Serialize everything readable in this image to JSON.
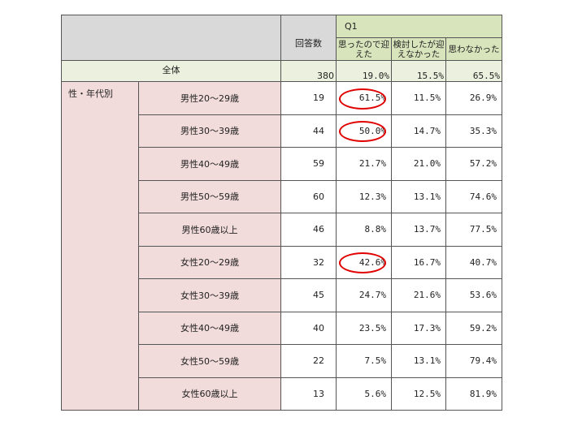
{
  "header": {
    "question": "Q1",
    "count_label": "回答数",
    "answers": [
      "思ったので迎えた",
      "検討したが迎えなかった",
      "思わなかった"
    ]
  },
  "total": {
    "label": "全体",
    "count": "380",
    "values": [
      "19.0%",
      "15.5%",
      "65.5%"
    ]
  },
  "group_label": "性・年代別",
  "highlight_color": "#e00000",
  "rows": [
    {
      "label": "男性20～29歳",
      "count": "19",
      "values": [
        "61.5%",
        "11.5%",
        "26.9%"
      ],
      "circled": true
    },
    {
      "label": "男性30～39歳",
      "count": "44",
      "values": [
        "50.0%",
        "14.7%",
        "35.3%"
      ],
      "circled": true
    },
    {
      "label": "男性40～49歳",
      "count": "59",
      "values": [
        "21.7%",
        "21.0%",
        "57.2%"
      ],
      "circled": false
    },
    {
      "label": "男性50～59歳",
      "count": "60",
      "values": [
        "12.3%",
        "13.1%",
        "74.6%"
      ],
      "circled": false
    },
    {
      "label": "男性60歳以上",
      "count": "46",
      "values": [
        "8.8%",
        "13.7%",
        "77.5%"
      ],
      "circled": false
    },
    {
      "label": "女性20～29歳",
      "count": "32",
      "values": [
        "42.6%",
        "16.7%",
        "40.7%"
      ],
      "circled": true
    },
    {
      "label": "女性30～39歳",
      "count": "45",
      "values": [
        "24.7%",
        "21.6%",
        "53.6%"
      ],
      "circled": false
    },
    {
      "label": "女性40～49歳",
      "count": "40",
      "values": [
        "23.5%",
        "17.3%",
        "59.2%"
      ],
      "circled": false
    },
    {
      "label": "女性50～59歳",
      "count": "22",
      "values": [
        "7.5%",
        "13.1%",
        "79.4%"
      ],
      "circled": false
    },
    {
      "label": "女性60歳以上",
      "count": "13",
      "values": [
        "5.6%",
        "12.5%",
        "81.9%"
      ],
      "circled": false
    }
  ]
}
